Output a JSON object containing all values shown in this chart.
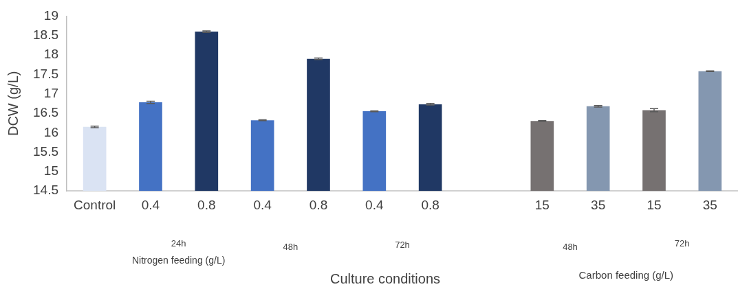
{
  "chart_data": {
    "type": "bar",
    "ylabel": "DCW (g/L)",
    "xlabel": "Culture conditions",
    "categories": [
      "Control",
      "0.4",
      "0.8",
      "0.4",
      "0.8",
      "0.4",
      "0.8",
      null,
      "15",
      "35",
      "15",
      "35"
    ],
    "values": [
      16.15,
      16.78,
      18.6,
      16.32,
      17.9,
      16.55,
      16.73,
      null,
      16.3,
      16.68,
      16.58,
      17.58
    ],
    "errors": [
      0.02,
      0.03,
      0.02,
      0.01,
      0.02,
      0.01,
      0.02,
      null,
      0.01,
      0.02,
      0.04,
      0.01
    ],
    "colors": [
      "#dae3f3",
      "#4472c4",
      "#203864",
      "#4472c4",
      "#203864",
      "#4472c4",
      "#203864",
      null,
      "#767171",
      "#8497b0",
      "#767171",
      "#8497b0"
    ],
    "ylim": [
      14.5,
      19
    ],
    "yticks": [
      14.5,
      15,
      15.5,
      16,
      16.5,
      17,
      17.5,
      18,
      18.5,
      19
    ],
    "annotations": [
      "24h",
      "48h",
      "72h",
      "Nitrogen feeding (g/L)",
      "48h",
      "72h",
      "Carbon feeding (g/L)"
    ],
    "grid": false,
    "legend": false
  }
}
